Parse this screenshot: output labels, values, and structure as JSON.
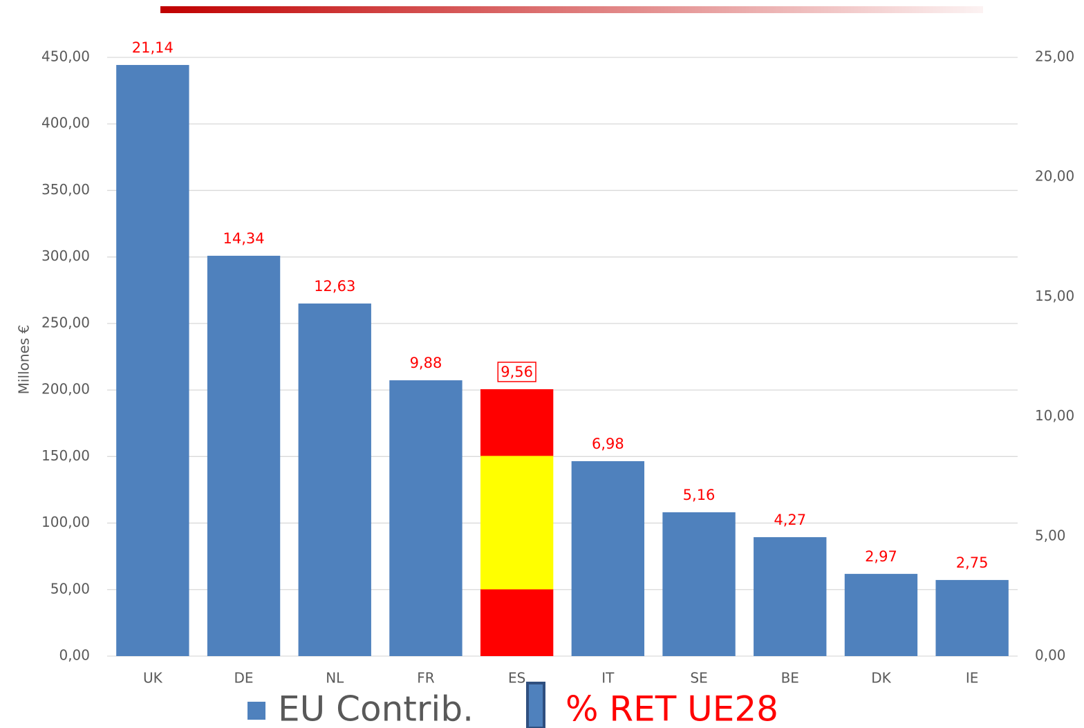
{
  "chart_data": {
    "type": "bar",
    "y_axis_label": "Millones €",
    "categories": [
      "UK",
      "DE",
      "NL",
      "FR",
      "ES",
      "IT",
      "SE",
      "BE",
      "DK",
      "IE"
    ],
    "series": [
      {
        "name": "EU Contrib.",
        "color": "#4f81bd",
        "values": [
          444.3,
          300.9,
          265.0,
          207.3,
          200.6,
          146.5,
          108.1,
          89.4,
          61.8,
          57.2
        ],
        "colors": [
          "#4f81bd",
          "#4f81bd",
          "#4f81bd",
          "#4f81bd",
          [
            "#ff0000",
            "#ffff00",
            "#ff0000"
          ],
          "#4f81bd",
          "#4f81bd",
          "#4f81bd",
          "#4f81bd",
          "#4f81bd"
        ]
      },
      {
        "name": "% RET UE28",
        "color": "#ff0000",
        "axis": "y2",
        "values": [
          21.14,
          14.34,
          12.63,
          9.88,
          9.56,
          6.98,
          5.16,
          4.27,
          2.97,
          2.75
        ],
        "value_labels": [
          "21,14",
          "14,34",
          "12,63",
          "9,88",
          "9,56",
          "6,98",
          "5,16",
          "4,27",
          "2,97",
          "2,75"
        ]
      }
    ],
    "ylim": [
      0,
      450
    ],
    "yticks": [
      {
        "value": 0,
        "label": "0,00"
      },
      {
        "value": 50,
        "label": "50,00"
      },
      {
        "value": 100,
        "label": "100,00"
      },
      {
        "value": 150,
        "label": "150,00"
      },
      {
        "value": 200,
        "label": "200,00"
      },
      {
        "value": 250,
        "label": "250,00"
      },
      {
        "value": 300,
        "label": "300,00"
      },
      {
        "value": 350,
        "label": "350,00"
      },
      {
        "value": 400,
        "label": "400,00"
      },
      {
        "value": 450,
        "label": "450,00"
      }
    ],
    "y2lim": [
      0,
      25
    ],
    "y2ticks": [
      {
        "value": 0,
        "label": "0,00"
      },
      {
        "value": 5,
        "label": "5,00"
      },
      {
        "value": 10,
        "label": "10,00"
      },
      {
        "value": 15,
        "label": "15,00"
      },
      {
        "value": 20,
        "label": "20,00"
      },
      {
        "value": 25,
        "label": "25,00"
      }
    ],
    "grid": true
  }
}
